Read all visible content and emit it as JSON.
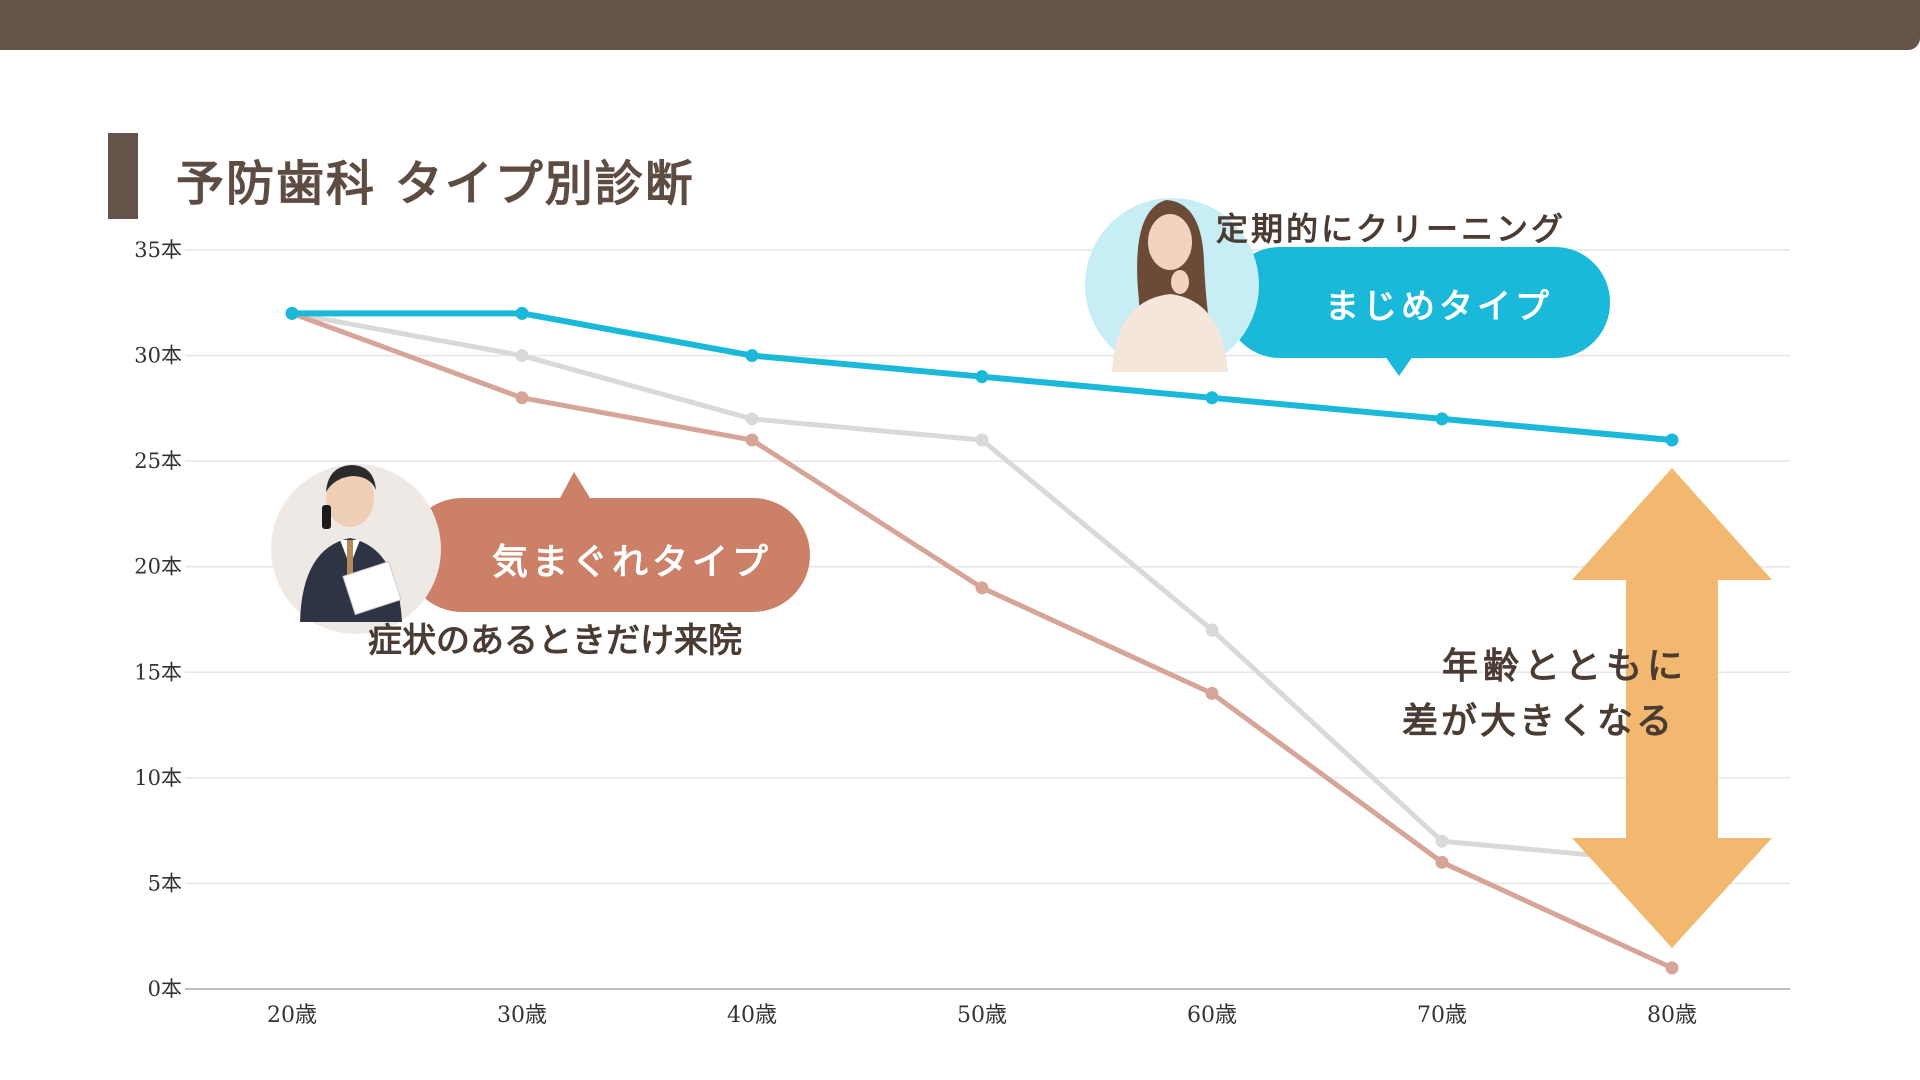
{
  "page": {
    "title": "予防歯科 タイプ別診断"
  },
  "annotations": {
    "majime_caption": "定期的にクリーニング",
    "majime_label": "まじめタイプ",
    "kimagure_label": "気まぐれタイプ",
    "kimagure_caption": "症状のあるときだけ来院",
    "gap_line1": "年齢とともに",
    "gap_line2": "差が大きくなる"
  },
  "colors": {
    "header": "#65544a",
    "majime": "#1ab9d9",
    "kimagure": "#d7a598",
    "kimagure_bubble": "#cb8067",
    "average": "#d9d9d9",
    "arrow": "#f2b86f"
  },
  "chart_data": {
    "type": "line",
    "categories": [
      "20歳",
      "30歳",
      "40歳",
      "50歳",
      "60歳",
      "70歳",
      "80歳"
    ],
    "y_tick_labels": [
      "0本",
      "5本",
      "10本",
      "15本",
      "20本",
      "25本",
      "30本",
      "35本"
    ],
    "ylim": [
      0,
      35
    ],
    "grid": true,
    "series": [
      {
        "key": "average",
        "color": "#d9d9d9",
        "values": [
          32,
          30,
          27,
          26,
          17,
          7,
          6
        ]
      },
      {
        "key": "kimagure",
        "color": "#d7a598",
        "values": [
          32,
          28,
          26,
          19,
          14,
          6,
          1
        ]
      },
      {
        "key": "majime",
        "color": "#1ab9d9",
        "values": [
          32,
          32,
          30,
          29,
          28,
          27,
          26
        ]
      }
    ]
  }
}
